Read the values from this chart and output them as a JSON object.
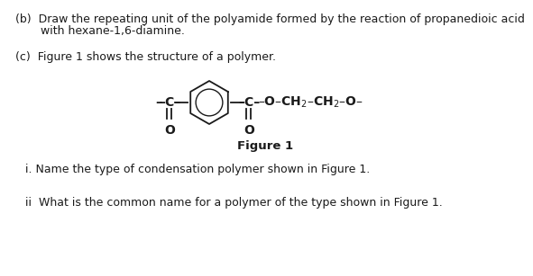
{
  "bg_color": "#ffffff",
  "text_b_line1": "(b)  Draw the repeating unit of the polyamide formed by the reaction of propanedioic acid",
  "text_b_line2": "       with hexane-1,6-diamine.",
  "text_c": "(c)  Figure 1 shows the structure of a polymer.",
  "text_i": "i. Name the type of condensation polymer shown in Figure 1.",
  "text_ii": "ii  What is the common name for a polymer of the type shown in Figure 1.",
  "figure_label": "Figure 1",
  "font_size_main": 9.0,
  "line_color": "#1a1a1a"
}
